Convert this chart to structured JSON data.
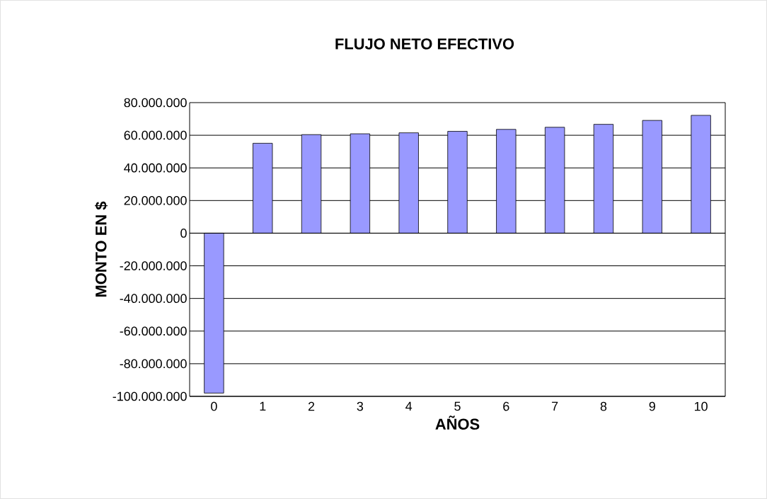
{
  "chart_data": {
    "type": "bar",
    "title": "FLUJO NETO EFECTIVO",
    "xlabel": "AÑOS",
    "ylabel": "MONTO EN $",
    "categories": [
      "0",
      "1",
      "2",
      "3",
      "4",
      "5",
      "6",
      "7",
      "8",
      "9",
      "10"
    ],
    "values": [
      -98000000,
      55100000,
      60400000,
      60900000,
      61500000,
      62400000,
      63600000,
      64900000,
      66700000,
      69100000,
      72200000
    ],
    "color": "#9999ff",
    "ylim": [
      -100000000,
      80000000
    ],
    "yticks": [
      {
        "value": -100000000,
        "label": "-100.000.000"
      },
      {
        "value": -80000000,
        "label": "-80.000.000"
      },
      {
        "value": -60000000,
        "label": "-60.000.000"
      },
      {
        "value": -40000000,
        "label": "-40.000.000"
      },
      {
        "value": -20000000,
        "label": "-20.000.000"
      },
      0,
      {
        "value": 20000000,
        "label": "20.000.000"
      },
      {
        "value": 40000000,
        "label": "40.000.000"
      },
      {
        "value": 60000000,
        "label": "60.000.000"
      },
      {
        "value": 80000000,
        "label": "80.000.000"
      }
    ],
    "grid": "y"
  }
}
